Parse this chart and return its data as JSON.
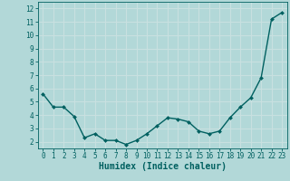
{
  "xlabel": "Humidex (Indice chaleur)",
  "x": [
    0,
    1,
    2,
    3,
    4,
    5,
    6,
    7,
    8,
    9,
    10,
    11,
    12,
    13,
    14,
    15,
    16,
    17,
    18,
    19,
    20,
    21,
    22,
    23
  ],
  "y": [
    5.6,
    4.6,
    4.6,
    3.9,
    2.3,
    2.6,
    2.1,
    2.1,
    1.8,
    2.1,
    2.6,
    3.2,
    3.8,
    3.7,
    3.5,
    2.8,
    2.6,
    2.8,
    3.8,
    4.6,
    5.3,
    6.8,
    11.2,
    11.7
  ],
  "line_color": "#006060",
  "marker": "D",
  "marker_size": 2.0,
  "bg_color": "#b2d8d8",
  "grid_color": "#c8e0e0",
  "xlim": [
    -0.5,
    23.5
  ],
  "ylim": [
    1.5,
    12.5
  ],
  "yticks": [
    2,
    3,
    4,
    5,
    6,
    7,
    8,
    9,
    10,
    11,
    12
  ],
  "xticks": [
    0,
    1,
    2,
    3,
    4,
    5,
    6,
    7,
    8,
    9,
    10,
    11,
    12,
    13,
    14,
    15,
    16,
    17,
    18,
    19,
    20,
    21,
    22,
    23
  ],
  "tick_fontsize": 5.5,
  "xlabel_fontsize": 7.0,
  "line_width": 1.0
}
